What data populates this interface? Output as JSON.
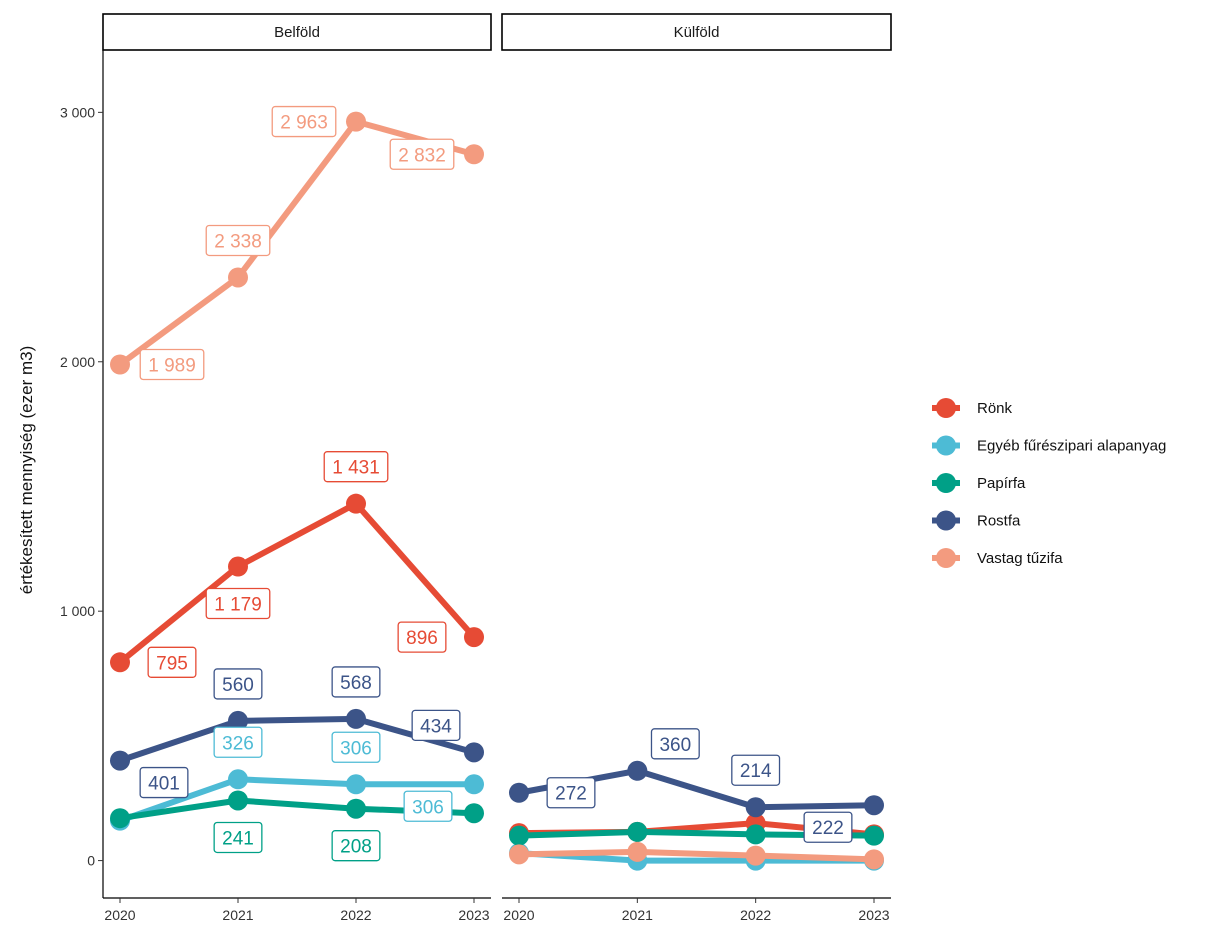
{
  "chart_data": {
    "type": "line",
    "ylabel": "értékesített mennyiség (ezer m3)",
    "xlabel": "",
    "x": [
      2020,
      2021,
      2022,
      2023
    ],
    "x_tick_labels": [
      "2020",
      "2021",
      "2022",
      "2023"
    ],
    "ylim": [
      -150,
      3250
    ],
    "y_ticks": [
      0,
      1000,
      2000,
      3000
    ],
    "y_tick_labels": [
      "0",
      "1 000",
      "2 000",
      "3 000"
    ],
    "grid": false,
    "legend_position": "right",
    "panels": [
      {
        "name": "Belföld",
        "series": [
          {
            "name": "Rönk",
            "color": "#E64B35",
            "values": [
              795,
              1179,
              1431,
              896
            ],
            "labels": [
              "795",
              "1 179",
              "1 431",
              "896"
            ],
            "label_pos": [
              "right",
              "below",
              "above",
              "left"
            ]
          },
          {
            "name": "Egyéb fűrészipari alapanyag",
            "color": "#4DBBD5",
            "values": [
              160,
              326,
              306,
              306
            ],
            "labels": [
              "",
              "326",
              "306",
              "306"
            ],
            "label_pos": [
              "none",
              "above",
              "above",
              "belowleft"
            ]
          },
          {
            "name": "Papírfa",
            "color": "#00A087",
            "values": [
              170,
              241,
              208,
              190
            ],
            "labels": [
              "",
              "241",
              "208",
              ""
            ],
            "label_pos": [
              "none",
              "below",
              "below",
              "none"
            ]
          },
          {
            "name": "Rostfa",
            "color": "#3C5488",
            "values": [
              401,
              560,
              568,
              434
            ],
            "labels": [
              "401",
              "560",
              "568",
              "434"
            ],
            "label_pos": [
              "belowright",
              "above",
              "above",
              "aboveleft"
            ]
          },
          {
            "name": "Vastag tűzifa",
            "color": "#F39B7F",
            "values": [
              1989,
              2338,
              2963,
              2832
            ],
            "labels": [
              "1 989",
              "2 338",
              "2 963",
              "2 832"
            ],
            "label_pos": [
              "right",
              "above",
              "left",
              "left"
            ]
          }
        ]
      },
      {
        "name": "Külföld",
        "series": [
          {
            "name": "Rönk",
            "color": "#E64B35",
            "values": [
              110,
              115,
              150,
              105
            ],
            "labels": [
              "",
              "",
              "",
              ""
            ],
            "label_pos": [
              "none",
              "none",
              "none",
              "none"
            ]
          },
          {
            "name": "Egyéb fűrészipari alapanyag",
            "color": "#4DBBD5",
            "values": [
              30,
              0,
              0,
              0
            ],
            "labels": [
              "",
              "",
              "",
              ""
            ],
            "label_pos": [
              "none",
              "none",
              "none",
              "none"
            ]
          },
          {
            "name": "Papírfa",
            "color": "#00A087",
            "values": [
              100,
              115,
              105,
              100
            ],
            "labels": [
              "",
              "",
              "",
              ""
            ],
            "label_pos": [
              "none",
              "none",
              "none",
              "none"
            ]
          },
          {
            "name": "Rostfa",
            "color": "#3C5488",
            "values": [
              272,
              360,
              214,
              222
            ],
            "labels": [
              "272",
              "360",
              "214",
              "222"
            ],
            "label_pos": [
              "right",
              "aboveright",
              "above",
              "belowleft"
            ]
          },
          {
            "name": "Vastag tűzifa",
            "color": "#F39B7F",
            "values": [
              25,
              35,
              20,
              5
            ],
            "labels": [
              "",
              "",
              "",
              ""
            ],
            "label_pos": [
              "none",
              "none",
              "none",
              "none"
            ]
          }
        ]
      }
    ],
    "legend": [
      {
        "name": "Rönk",
        "color": "#E64B35"
      },
      {
        "name": "Egyéb fűrészipari alapanyag",
        "color": "#4DBBD5"
      },
      {
        "name": "Papírfa",
        "color": "#00A087"
      },
      {
        "name": "Rostfa",
        "color": "#3C5488"
      },
      {
        "name": "Vastag tűzifa",
        "color": "#F39B7F"
      }
    ]
  }
}
